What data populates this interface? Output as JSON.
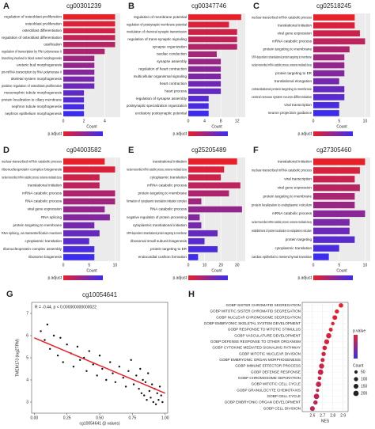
{
  "chart_data": [
    {
      "type": "bar",
      "label": "A",
      "title": "cg00301239",
      "xlabel": "Count",
      "legend_title": "p.adjust",
      "gradient": [
        "#e8202a",
        "#3b2cf0"
      ],
      "categories": [
        "regulation of osteoblast proliferation",
        "osteoblast proliferation",
        "osteoblast differentiation",
        "regulation of osteoblast differentiation",
        "ossification",
        "regulation of transcription by RNA polymerase II",
        "branching involved in blood vessel morphogenesis",
        "ureteric bud morphogenesis",
        "pri-miRNA transcription by RNA polymerase II",
        "skeletal system morphogenesis",
        "positive regulation of osteoblast proliferation",
        "mesonephric tubule morphogenesis",
        "protein localization to ciliary membrane",
        "nephron tubule morphogenesis",
        "nephron epithelium morphogenesis"
      ],
      "values": [
        5,
        5,
        5,
        5,
        5,
        4,
        3,
        3,
        3,
        3,
        3,
        2,
        2,
        2,
        2
      ],
      "xlim": [
        0,
        5.5
      ],
      "xticks": [
        0,
        2,
        4
      ]
    },
    {
      "type": "bar",
      "label": "B",
      "title": "cg00347746",
      "xlabel": "Count",
      "legend_title": "p.adjust",
      "gradient": [
        "#e8202a",
        "#3b2cf0"
      ],
      "categories": [
        "regulation of membrane potential",
        "regulation of postsynaptic membrane potential",
        "modulation of chemical synaptic transmission",
        "regulation of trans-synaptic signaling",
        "synapse organization",
        "cardiac conduction",
        "synapse assembly",
        "regulation of heart contraction",
        "multicellular organismal signaling",
        "heart contraction",
        "heart process",
        "regulation of synapse assembly",
        "postsynaptic specialization organization",
        "excitatory postsynaptic potential"
      ],
      "values": [
        13,
        10,
        12,
        12,
        12,
        7,
        8,
        8,
        8,
        8,
        8,
        5,
        5,
        5
      ],
      "xlim": [
        0,
        14
      ],
      "xticks": [
        0,
        4,
        8,
        12
      ]
    },
    {
      "type": "bar",
      "label": "C",
      "title": "cg02518245",
      "xlabel": "Count",
      "legend_title": "p.adjust",
      "gradient": [
        "#e8202a",
        "#3b2cf0"
      ],
      "categories": [
        "nuclear-transcribed mRNA catabolic process",
        "translational initiation",
        "viral gene expression",
        "mRNA catabolic process",
        "protein targeting to membrane",
        "SRP-dependent cotranslational protein targeting to membrane",
        "nuclear-transcribed mRNA catabolic process, nonsense-mediated decay",
        "protein targeting to ER",
        "translational elongation",
        "cotranslational protein targeting to membrane",
        "central nervous system neuron differentiation",
        "viral transcription",
        "neuron projection guidance"
      ],
      "values": [
        8,
        8,
        9,
        10,
        7,
        6,
        6,
        6,
        5,
        6,
        6,
        5,
        5
      ],
      "xlim": [
        0,
        11
      ],
      "xticks": [
        0,
        5,
        10
      ]
    },
    {
      "type": "bar",
      "label": "D",
      "title": "cg04003582",
      "xlabel": "Count",
      "legend_title": "p.adjust",
      "gradient": [
        "#e8202a",
        "#3b2cf0"
      ],
      "categories": [
        "nuclear-transcribed mRNA catabolic process",
        "ribonucleoprotein complex biogenesis",
        "nuclear-transcribed mRNA catabolic process, nonsense-mediated decay",
        "translational initiation",
        "mRNA catabolic process",
        "RNA catabolic process",
        "viral gene expression",
        "RNA splicing",
        "protein targeting to membrane",
        "RNA splicing, via transesterification reactions",
        "cytoplasmic translation",
        "ribonucleoprotein complex assembly",
        "ribosome biogenesis"
      ],
      "values": [
        8,
        10,
        7,
        7,
        10,
        10,
        8,
        9,
        6,
        7,
        5,
        6,
        6
      ],
      "xlim": [
        0,
        11
      ],
      "xticks": [
        0,
        5,
        10
      ]
    },
    {
      "type": "bar",
      "label": "E",
      "title": "cg25205489",
      "xlabel": "Count",
      "legend_title": "p.adjust",
      "gradient": [
        "#e8202a",
        "#3b2cf0"
      ],
      "categories": [
        "translational initiation",
        "nuclear-transcribed mRNA catabolic process, nonsense-mediated decay",
        "cytoplasmic translation",
        "mRNA catabolic process",
        "protein targeting to membrane",
        "formation of cytoplasmic translation initiation complex",
        "RNA catabolic process",
        "negative regulation of protein processing",
        "cytoplasmic translational initiation",
        "SRP-dependent cotranslational protein targeting to membrane",
        "ribosomal small subunit biogenesis",
        "protein targeting to ER",
        "endocardial cushion formation"
      ],
      "values": [
        30,
        22,
        20,
        32,
        25,
        8,
        33,
        7,
        8,
        18,
        10,
        18,
        6
      ],
      "xlim": [
        0,
        35
      ],
      "xticks": [
        0,
        10,
        20,
        30
      ]
    },
    {
      "type": "bar",
      "label": "F",
      "title": "cg27305460",
      "xlabel": "Count",
      "legend_title": "p.adjust",
      "gradient": [
        "#e8202a",
        "#3b2cf0"
      ],
      "categories": [
        "translational initiation",
        "nuclear-transcribed mRNA catabolic process",
        "viral transcription",
        "viral gene expression",
        "protein targeting to membrane",
        "protein localization to endoplasmic reticulum",
        "mRNA catabolic process",
        "nuclear-transcribed mRNA catabolic process, nonsense-mediated decay",
        "establishment of protein localization to endoplasmic reticulum",
        "protein targeting",
        "cytoplasmic translation",
        "cardiac epithelial to mesenchymal transition"
      ],
      "values": [
        10,
        9,
        8,
        9,
        8,
        8,
        10,
        7,
        7,
        8,
        5,
        3
      ],
      "xlim": [
        0,
        11
      ],
      "xticks": [
        0,
        5,
        10
      ]
    },
    {
      "type": "scatter",
      "label": "G",
      "title": "cg10054641",
      "annotation": "R = -0.44, p < 0.000000000000022",
      "xlabel": "cg10054641 (β values)",
      "ylabel": "TMEM173 (log2TPM)",
      "color": "#111111",
      "line_color": "#e8202a",
      "x": [
        0.05,
        0.08,
        0.1,
        0.12,
        0.15,
        0.18,
        0.2,
        0.22,
        0.25,
        0.28,
        0.3,
        0.33,
        0.35,
        0.38,
        0.4,
        0.42,
        0.45,
        0.48,
        0.5,
        0.52,
        0.55,
        0.58,
        0.6,
        0.62,
        0.65,
        0.68,
        0.7,
        0.72,
        0.74,
        0.76,
        0.78,
        0.8,
        0.81,
        0.82,
        0.83,
        0.84,
        0.85,
        0.86,
        0.87,
        0.88,
        0.89,
        0.9,
        0.91,
        0.92,
        0.93,
        0.94,
        0.95,
        0.96,
        0.97,
        0.98
      ],
      "y": [
        6.2,
        5.8,
        6.5,
        5.4,
        6.0,
        5.1,
        5.9,
        4.8,
        5.6,
        5.2,
        4.6,
        5.5,
        4.9,
        5.0,
        4.4,
        5.3,
        4.7,
        4.2,
        5.1,
        4.5,
        4.0,
        4.8,
        4.3,
        3.9,
        4.6,
        4.1,
        3.7,
        4.4,
        4.9,
        3.8,
        4.2,
        3.6,
        4.5,
        3.4,
        4.0,
        3.3,
        3.9,
        3.1,
        4.3,
        3.5,
        3.2,
        3.8,
        3.0,
        3.6,
        2.9,
        3.4,
        3.1,
        3.7,
        3.3,
        3.0
      ],
      "fit_line": {
        "x": [
          0,
          1
        ],
        "y": [
          5.9,
          3.4
        ]
      },
      "xlim": [
        -0.02,
        1.02
      ],
      "xticks": [
        {
          "value": 0,
          "label": "0.00"
        },
        {
          "value": 0.25,
          "label": "0.25"
        },
        {
          "value": 0.5,
          "label": "0.50"
        },
        {
          "value": 0.75,
          "label": "0.75"
        },
        {
          "value": 1,
          "label": "1.00"
        }
      ],
      "ylim": [
        2.5,
        7.5
      ],
      "yticks": [
        3,
        4,
        5,
        6,
        7
      ]
    },
    {
      "type": "dot",
      "label": "H",
      "xlabel": "NES",
      "color_legend_title": "p.value",
      "size_legend_title": "Count",
      "gradient": [
        "#e8202a",
        "#3b2cf0"
      ],
      "categories": [
        "GOBP SISTER CHROMATID SEGREGATION",
        "GOBP MITOTIC SISTER CHROMATID SEGREGATION",
        "GOBP NUCLEAR CHROMOSOME SEGREGATION",
        "GOBP EMBRYONIC SKELETAL SYSTEM DEVELOPMENT",
        "GOBP RESPONSE TO MITOTIC STIMULUS",
        "GOBP VASCULATURE DEVELOPMENT",
        "GOBP DEFENSE RESPONSE TO OTHER ORGANISM",
        "GOBP CYTOKINE MEDIATED SIGNALING PATHWAY",
        "GOBP MITOTIC NUCLEAR DIVISION",
        "GOBP EMBRYONIC ORGAN MORPHOGENESIS",
        "GOBP IMMUNE EFFECTOR PROCESS",
        "GOBP DEFENSE RESPONSE",
        "GOBP CHROMOSOME SEPARATION",
        "GOBP MITOTIC CELL CYCLE",
        "GOBP GRANULOCYTE CHEMOTAXIS",
        "GOBP CELL CYCLE",
        "GOBP EMBRYONIC ORGAN DEVELOPMENT",
        "GOBP CELL DIVISION"
      ],
      "values": [
        2.88,
        2.84,
        2.82,
        2.8,
        2.78,
        2.76,
        2.74,
        2.72,
        2.71,
        2.7,
        2.69,
        2.68,
        2.67,
        2.66,
        2.65,
        2.64,
        2.63,
        2.6
      ],
      "sizes": [
        120,
        100,
        140,
        60,
        80,
        180,
        160,
        120,
        110,
        90,
        170,
        200,
        70,
        190,
        50,
        200,
        110,
        150
      ],
      "xlim": [
        2.5,
        2.95
      ],
      "xticks": [
        2.6,
        2.7,
        2.8,
        2.9
      ],
      "size_ticks": [
        50,
        100,
        150,
        200
      ]
    }
  ]
}
